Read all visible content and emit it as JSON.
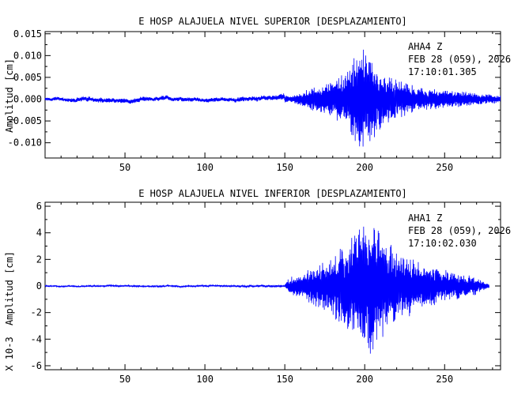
{
  "chart_data": [
    {
      "type": "line",
      "title": "E HOSP ALAJUELA NIVEL SUPERIOR [DESPLAZAMIENTO]",
      "ylabel": "Amplitud [cm]",
      "multiplier_label": "",
      "xlim": [
        0,
        285
      ],
      "ylim": [
        -0.0135,
        0.0155
      ],
      "xticks": [
        "50",
        "100",
        "150",
        "200",
        "250"
      ],
      "xtick_values": [
        50,
        100,
        150,
        200,
        250
      ],
      "yticks": [
        "-0.010",
        "-0.005",
        "0.000",
        "0.005",
        "0.010",
        "0.015"
      ],
      "ytick_values": [
        -0.01,
        -0.005,
        0.0,
        0.005,
        0.01,
        0.015
      ],
      "annotations": [
        "AHA4   Z",
        "FEB 28 (059), 2026",
        "17:10:01.305"
      ],
      "series_color": "#0000ff",
      "envelope": {
        "time_s": [
          0,
          40,
          100,
          140,
          155,
          160,
          175,
          185,
          190,
          195,
          198,
          200,
          205,
          210,
          220,
          235,
          250,
          265,
          285
        ],
        "amplitude_cm": [
          0.0004,
          0.0006,
          0.0005,
          0.0006,
          0.001,
          0.002,
          0.004,
          0.006,
          0.009,
          0.0125,
          0.014,
          0.013,
          0.011,
          0.008,
          0.005,
          0.003,
          0.0025,
          0.0018,
          0.001
        ]
      }
    },
    {
      "type": "line",
      "title": "E HOSP ALAJUELA NIVEL INFERIOR [DESPLAZAMIENTO]",
      "ylabel": "Amplitud [cm]",
      "multiplier_label": "X 10-3",
      "xlim": [
        0,
        285
      ],
      "ylim": [
        -6.3,
        6.3
      ],
      "xticks": [
        "50",
        "100",
        "150",
        "200",
        "250"
      ],
      "xtick_values": [
        50,
        100,
        150,
        200,
        250
      ],
      "yticks": [
        "-6",
        "-4",
        "-2",
        "0",
        "2",
        "4",
        "6"
      ],
      "ytick_values": [
        -6,
        -4,
        -2,
        0,
        2,
        4,
        6
      ],
      "annotations": [
        "AHA1   Z",
        "FEB 28 (059), 2026",
        "17:10:02.030"
      ],
      "series_color": "#0000ff",
      "envelope": {
        "time_s": [
          0,
          100,
          150,
          153,
          160,
          170,
          180,
          190,
          195,
          200,
          205,
          210,
          220,
          235,
          250,
          265,
          278
        ],
        "amplitude_cm": [
          0.05,
          0.06,
          0.08,
          0.8,
          1.0,
          1.8,
          2.6,
          4.0,
          5.2,
          6.1,
          5.8,
          4.5,
          3.2,
          2.0,
          1.4,
          1.0,
          0.2
        ]
      }
    }
  ]
}
